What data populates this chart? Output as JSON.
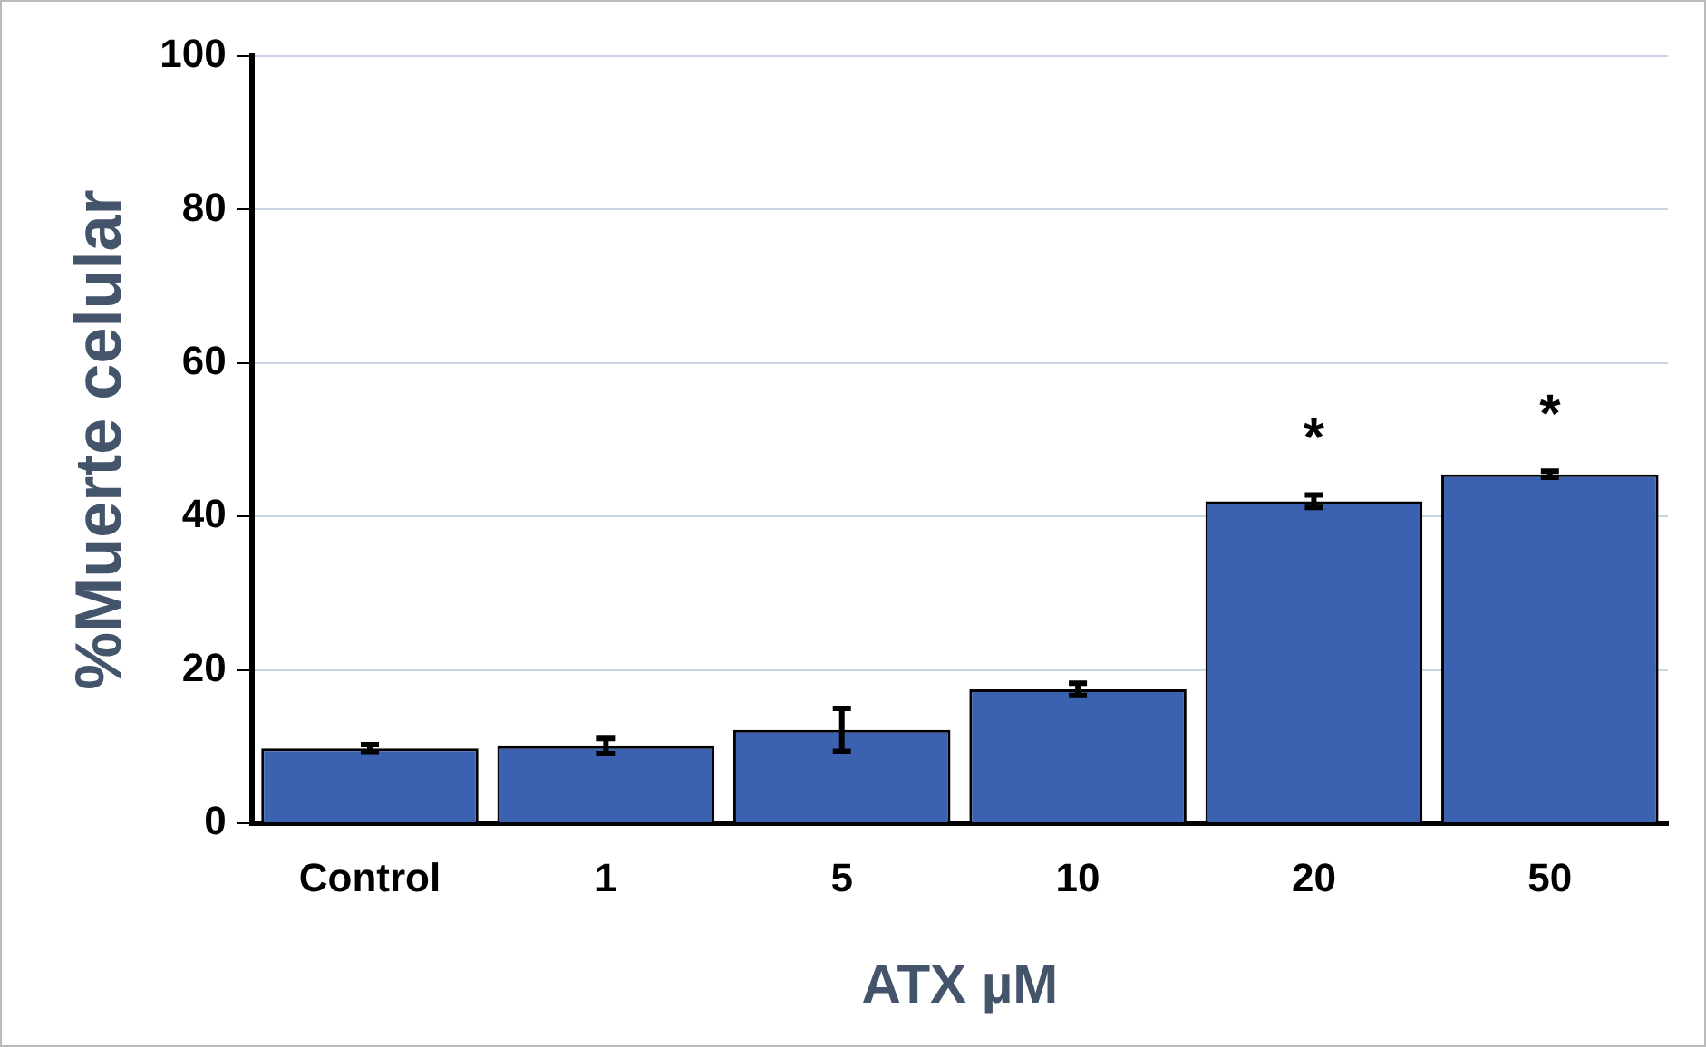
{
  "chart_data": {
    "type": "bar",
    "xlabel": "ATX µM",
    "ylabel": "%Muerte celular",
    "categories": [
      "Control",
      "1",
      "5",
      "10",
      "20",
      "50"
    ],
    "values": [
      9.8,
      10.1,
      12.2,
      17.5,
      42,
      45.5
    ],
    "errors": [
      0.5,
      1,
      2.8,
      0.8,
      0.8,
      0.4
    ],
    "value_labels": [
      null,
      null,
      null,
      null,
      "*",
      "*"
    ],
    "color": "#3a62b0",
    "ylim": [
      0,
      100
    ],
    "yticks": [
      0,
      20,
      40,
      60,
      80,
      100
    ],
    "grid": "y"
  }
}
